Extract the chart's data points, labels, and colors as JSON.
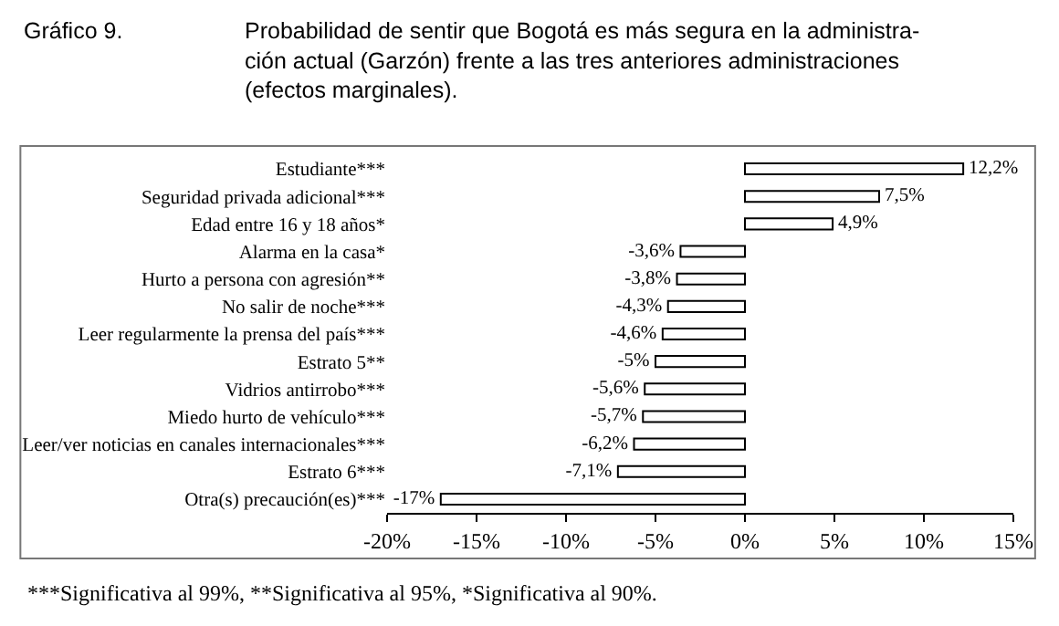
{
  "chart_data": {
    "type": "bar",
    "orientation": "horizontal",
    "title": "Gráfico 9.",
    "subtitle": "Probabilidad de sentir que Bogotá es más segura en la administra-\nción actual (Garzón) frente a las tres anteriores administraciones\n(efectos marginales).",
    "categories": [
      "Estudiante***",
      "Seguridad privada adicional***",
      "Edad entre 16 y 18 años*",
      "Alarma en la casa*",
      "Hurto a persona con agresión**",
      "No salir de noche***",
      "Leer regularmente la prensa del país***",
      "Estrato 5**",
      "Vidrios antirrobo***",
      "Miedo hurto de vehículo***",
      "Leer/ver noticias en canales internacionales***",
      "Estrato 6***",
      "Otra(s) precaución(es)***"
    ],
    "values": [
      12.2,
      7.5,
      4.9,
      -3.6,
      -3.8,
      -4.3,
      -4.6,
      -5,
      -5.6,
      -5.7,
      -6.2,
      -7.1,
      -17
    ],
    "value_labels": [
      "12,2%",
      "7,5%",
      "4,9%",
      "-3,6%",
      "-3,8%",
      "-4,3%",
      "-4,6%",
      "-5%",
      "-5,6%",
      "-5,7%",
      "-6,2%",
      "-7,1%",
      "-17%"
    ],
    "color": "#ffffff",
    "xlim": [
      -20,
      15
    ],
    "xticks": [
      {
        "value": -20,
        "label": "-20%"
      },
      {
        "value": -15,
        "label": "-15%"
      },
      {
        "value": -10,
        "label": "-10%"
      },
      {
        "value": -5,
        "label": "-5%"
      },
      {
        "value": 0,
        "label": "0%"
      },
      {
        "value": 5,
        "label": "5%"
      },
      {
        "value": 10,
        "label": "10%"
      },
      {
        "value": 15,
        "label": "15%"
      }
    ],
    "grid": false,
    "legend": false,
    "annotations": [
      "***Significativa al 99%, **Significativa al 95%, *Significativa al 90%."
    ]
  }
}
